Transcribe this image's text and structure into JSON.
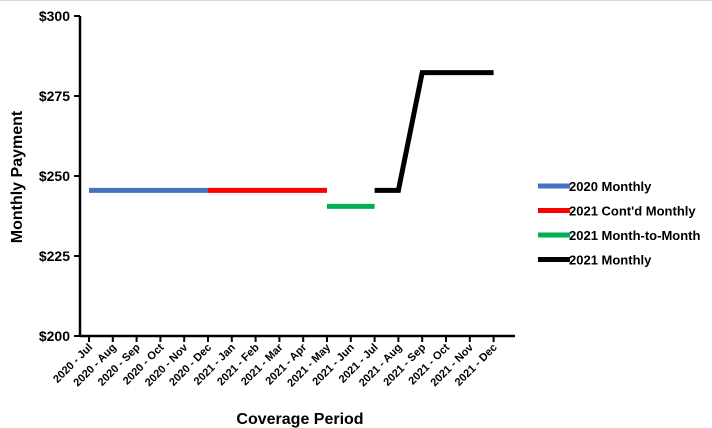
{
  "chart_data": {
    "type": "line",
    "title": "",
    "xlabel": "Coverage Period",
    "ylabel": "Monthly Payment",
    "ylim": [
      200,
      300
    ],
    "yticks": [
      200,
      225,
      250,
      275,
      300
    ],
    "ytick_labels": [
      "$200",
      "$225",
      "$250",
      "$275",
      "$300"
    ],
    "categories": [
      "2020 - Jul",
      "2020 - Aug",
      "2020 - Sep",
      "2020 - Oct",
      "2020 - Nov",
      "2020 - Dec",
      "2021 - Jan",
      "2021 - Feb",
      "2021 - Mar",
      "2021 - Apr",
      "2021 - May",
      "2021 - Jun",
      "2021 - Jul",
      "2021 - Aug",
      "2021 - Sep",
      "2021 - Oct",
      "2021 - Nov",
      "2021 - Dec"
    ],
    "grid": false,
    "legend_position": "right",
    "series": [
      {
        "name": "2020 Monthly",
        "color": "#4472C4",
        "points": [
          [
            "2020 - Jul",
            245.5
          ],
          [
            "2020 - Dec",
            245.5
          ]
        ]
      },
      {
        "name": "2021 Cont'd Monthly",
        "color": "#FF0000",
        "points": [
          [
            "2020 - Dec",
            245.5
          ],
          [
            "2021 - May",
            245.5
          ]
        ]
      },
      {
        "name": "2021 Month-to-Month",
        "color": "#00B050",
        "points": [
          [
            "2021 - May",
            240.5
          ],
          [
            "2021 - Jul",
            240.5
          ]
        ]
      },
      {
        "name": "2021 Monthly",
        "color": "#000000",
        "points": [
          [
            "2021 - Jul",
            245.5
          ],
          [
            "2021 - Aug",
            245.5
          ],
          [
            "2021 - Sep",
            282.3
          ],
          [
            "2021 - Dec",
            282.3
          ]
        ]
      }
    ]
  }
}
